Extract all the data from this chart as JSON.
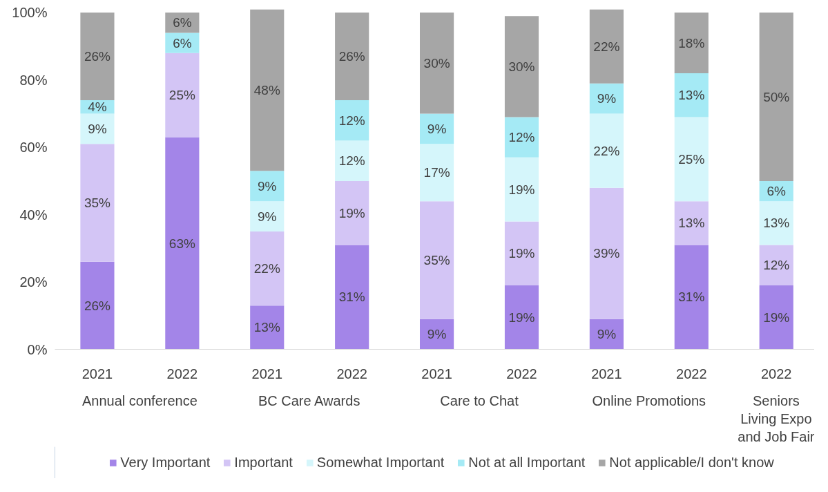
{
  "chart_data": {
    "type": "bar",
    "stacked": true,
    "legend": "bottom",
    "grid": false,
    "categories": [
      "2021",
      "2022",
      "2021",
      "2022",
      "2021",
      "2022",
      "2021",
      "2022",
      "2022"
    ],
    "annotations": [
      "Annual conference",
      "BC Care Awards",
      "Care to Chat",
      "Online Promotions",
      "Seniors Living Expo and Job Fair"
    ],
    "ylim": [
      0,
      101
    ],
    "yticks": [
      {
        "value": 0,
        "label": "0%"
      },
      {
        "value": 20,
        "label": "20%"
      },
      {
        "value": 40,
        "label": "40%"
      },
      {
        "value": 60,
        "label": "60%"
      },
      {
        "value": 80,
        "label": "80%"
      },
      {
        "value": 100,
        "label": "100%"
      }
    ],
    "series": [
      {
        "name": "Very Important",
        "color": "#a385e8",
        "values": [
          26,
          63,
          13,
          31,
          9,
          19,
          9,
          31,
          19
        ],
        "value_labels": [
          "26%",
          "63%",
          "13%",
          "31%",
          "9%",
          "19%",
          "9%",
          "31%",
          "19%"
        ]
      },
      {
        "name": "Important",
        "color": "#d3c5f5",
        "values": [
          35,
          25,
          22,
          19,
          35,
          19,
          39,
          13,
          12
        ],
        "value_labels": [
          "35%",
          "25%",
          "22%",
          "19%",
          "35%",
          "19%",
          "39%",
          "13%",
          "12%"
        ]
      },
      {
        "name": "Somewhat Important",
        "color": "#d5f6fb",
        "values": [
          9,
          null,
          9,
          12,
          17,
          19,
          22,
          25,
          13
        ],
        "value_labels": [
          "9%",
          null,
          "9%",
          "12%",
          "17%",
          "19%",
          "22%",
          "25%",
          "13%"
        ]
      },
      {
        "name": "Not at all Important",
        "color": "#a5eaf5",
        "values": [
          4,
          6,
          9,
          12,
          9,
          12,
          9,
          13,
          6
        ],
        "value_labels": [
          "4%",
          "6%",
          "9%",
          "12%",
          "9%",
          "12%",
          "9%",
          "13%",
          "6%"
        ]
      },
      {
        "name": "Not applicable/I don't know",
        "color": "#a6a6a6",
        "values": [
          26,
          6,
          48,
          26,
          30,
          30,
          22,
          18,
          50
        ],
        "value_labels": [
          "26%",
          "6%",
          "48%",
          "26%",
          "30%",
          "30%",
          "22%",
          "18%",
          "50%"
        ]
      }
    ]
  }
}
